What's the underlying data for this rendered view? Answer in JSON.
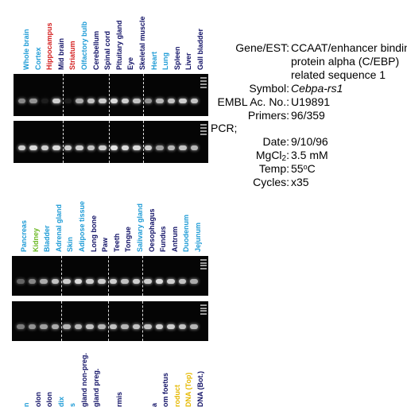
{
  "panels": [
    {
      "labels": [
        {
          "text": "Whole brain",
          "color": "#1d9bd6"
        },
        {
          "text": "Cortex",
          "color": "#1d9bd6"
        },
        {
          "text": "Hippocampus",
          "color": "#d42020"
        },
        {
          "text": "Mid brain",
          "color": "#111166"
        },
        {
          "text": "Striatum",
          "color": "#d42020"
        },
        {
          "text": "Olfactory bulb",
          "color": "#1d9bd6"
        },
        {
          "text": "Cerebellum",
          "color": "#111166"
        },
        {
          "text": "Spinal cord",
          "color": "#111166"
        },
        {
          "text": "Pituitary gland",
          "color": "#111166"
        },
        {
          "text": "Eye",
          "color": "#111166"
        },
        {
          "text": "Skeletal muscle",
          "color": "#111166"
        },
        {
          "text": "Heart",
          "color": "#1d9bd6"
        },
        {
          "text": "Lung",
          "color": "#1d9bd6"
        },
        {
          "text": "Spleen",
          "color": "#111166"
        },
        {
          "text": "Liver",
          "color": "#111166"
        },
        {
          "text": "Gall bladder",
          "color": "#111166"
        }
      ]
    },
    {
      "labels": [
        {
          "text": "Pancreas",
          "color": "#1d9bd6"
        },
        {
          "text": "Kidney",
          "color": "#6ab820"
        },
        {
          "text": "Bladder",
          "color": "#1d9bd6"
        },
        {
          "text": "Adrenal gland",
          "color": "#1d9bd6"
        },
        {
          "text": "Skin",
          "color": "#1d9bd6"
        },
        {
          "text": "Adipose tissue",
          "color": "#1d9bd6"
        },
        {
          "text": "Long bone",
          "color": "#111166"
        },
        {
          "text": "Paw",
          "color": "#111166"
        },
        {
          "text": "Teeth",
          "color": "#111166"
        },
        {
          "text": "Tongue",
          "color": "#111166"
        },
        {
          "text": "Salivary gland",
          "color": "#1d9bd6"
        },
        {
          "text": "Oesophagus",
          "color": "#111166"
        },
        {
          "text": "Fundus",
          "color": "#111166"
        },
        {
          "text": "Antrum",
          "color": "#111166"
        },
        {
          "text": "Duodenum",
          "color": "#1d9bd6"
        },
        {
          "text": "Jejunum",
          "color": "#1d9bd6"
        }
      ]
    },
    {
      "labels": [
        {
          "text": "n",
          "color": "#1d9bd6"
        },
        {
          "text": "olon",
          "color": "#111166"
        },
        {
          "text": "olon",
          "color": "#111166"
        },
        {
          "text": "dix",
          "color": "#1d9bd6"
        },
        {
          "text": "s",
          "color": "#1d9bd6"
        },
        {
          "text": "gland non-preg.",
          "color": "#111166"
        },
        {
          "text": "gland preg.",
          "color": "#111166"
        },
        {
          "text": "",
          "color": "#111166"
        },
        {
          "text": "rmis",
          "color": "#111166"
        },
        {
          "text": "",
          "color": "#111166"
        },
        {
          "text": "",
          "color": "#111166"
        },
        {
          "text": "a",
          "color": "#111166"
        },
        {
          "text": "om foetus",
          "color": "#111166"
        },
        {
          "text": "roduct",
          "color": "#e6b800"
        },
        {
          "text": "DNA (Top)",
          "color": "#e6b800"
        },
        {
          "text": "DNA (Bot.)",
          "color": "#111166"
        }
      ]
    }
  ],
  "info": {
    "gene_key": "Gene/EST:",
    "gene_lines": [
      "CCAAT/enhancer binding",
      "protein alpha (C/EBP)",
      "related sequence 1"
    ],
    "symbol_key": "Symbol:",
    "symbol_val": "Cebpa-rs1",
    "embl_key": "EMBL Ac. No.:",
    "embl_val": "U19891",
    "primers_key": "Primers:",
    "primers_val": "96/359",
    "pcr_key": "PCR;",
    "date_key": "Date:",
    "date_val": "9/10/96",
    "mg_key_a": "MgCl",
    "mg_key_sub": "2",
    "mg_key_b": ":",
    "mg_val": "3.5 mM",
    "temp_key": "Temp:",
    "temp_val_a": "55",
    "temp_val_sup": "o",
    "temp_val_b": "C",
    "cycles_key": "Cycles:",
    "cycles_val": "x35"
  },
  "band_intensity": {
    "panel1_top": [
      0.55,
      0.6,
      0.1,
      0.85,
      0.1,
      0.7,
      0.8,
      0.85,
      0.9,
      0.85,
      0.8,
      0.6,
      0.75,
      0.8,
      0.85,
      0.8
    ],
    "panel1_bottom": [
      0.85,
      0.9,
      0.85,
      0.9,
      0.85,
      0.85,
      0.8,
      0.85,
      0.95,
      0.9,
      0.9,
      0.85,
      0.65,
      0.75,
      0.8,
      0.75
    ],
    "panel2_top": [
      0.4,
      0.55,
      0.7,
      0.8,
      0.85,
      0.9,
      0.85,
      0.85,
      0.85,
      0.8,
      0.85,
      0.85,
      0.9,
      0.85,
      0.8,
      0.7
    ],
    "panel2_bottom": [
      0.5,
      0.6,
      0.65,
      0.7,
      0.75,
      0.75,
      0.8,
      0.75,
      0.8,
      0.75,
      0.8,
      0.8,
      0.85,
      0.85,
      0.8,
      0.75
    ]
  }
}
